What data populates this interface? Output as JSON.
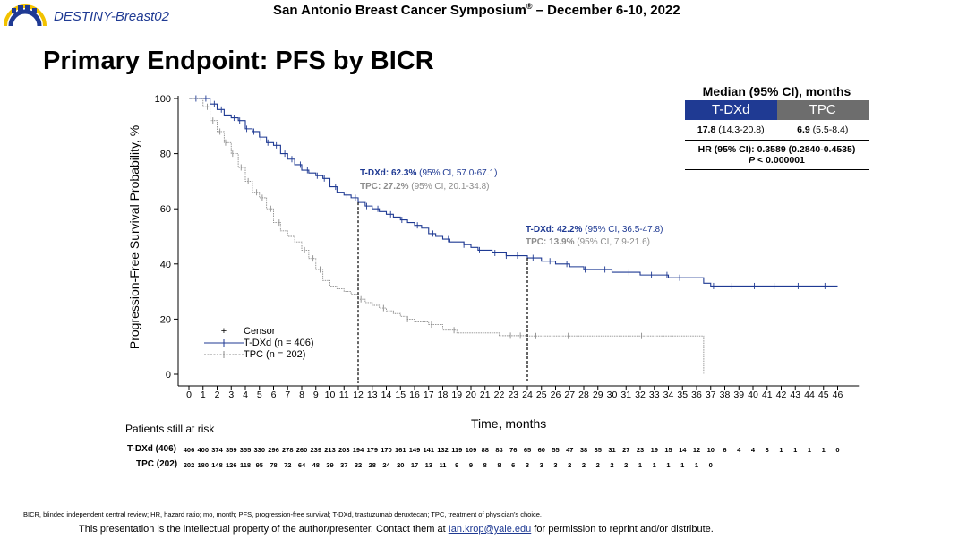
{
  "header": {
    "brand": "DESTINY-Breast02",
    "conference": "San Antonio Breast Cancer Symposium",
    "conference_mark": "®",
    "conference_dates": " – December 6-10, 2022"
  },
  "slide_title": "Primary Endpoint: PFS by BICR",
  "median_table": {
    "title": "Median (95% CI), months",
    "arm1": "T-DXd",
    "arm2": "TPC",
    "arm1_median": "17.8",
    "arm1_ci": "(14.3-20.8)",
    "arm2_median": "6.9",
    "arm2_ci": "(5.5-8.4)",
    "hr": "HR (95% CI): 0.3589 (0.2840-0.4535)",
    "p_prefix": "P",
    "p_value": "< 0.000001"
  },
  "annotations": {
    "m12": {
      "tdxd_label": "T-DXd: 62.3%",
      "tdxd_ci": "(95% CI, 57.0-67.1)",
      "tpc_label": "TPC: 27.2%",
      "tpc_ci": "(95% CI, 20.1-34.8)"
    },
    "m24": {
      "tdxd_label": "T-DXd: 42.2%",
      "tdxd_ci": "(95% CI, 36.5-47.8)",
      "tpc_label": "TPC: 13.9%",
      "tpc_ci": "(95% CI, 7.9-21.6)"
    }
  },
  "legend": {
    "censor": "Censor",
    "tdxd": "T-DXd (n = 406)",
    "tpc": "TPC (n = 202)"
  },
  "risk_table": {
    "title": "Patients still at risk",
    "tdxd_label": "T-DXd (406)",
    "tpc_label": "TPC (202)",
    "tdxd": [
      406,
      400,
      374,
      359,
      355,
      330,
      296,
      278,
      260,
      239,
      213,
      203,
      194,
      179,
      170,
      161,
      149,
      141,
      132,
      119,
      109,
      88,
      83,
      76,
      65,
      60,
      55,
      47,
      38,
      35,
      31,
      27,
      23,
      19,
      15,
      14,
      12,
      10,
      6,
      4,
      4,
      3,
      1,
      1,
      1,
      1,
      0
    ],
    "tpc": [
      202,
      180,
      148,
      126,
      118,
      95,
      78,
      72,
      64,
      48,
      39,
      37,
      32,
      28,
      24,
      20,
      17,
      13,
      11,
      9,
      9,
      8,
      8,
      6,
      3,
      3,
      3,
      2,
      2,
      2,
      2,
      2,
      1,
      1,
      1,
      1,
      1,
      0
    ]
  },
  "footer": {
    "footnote": "BICR,  blinded independent central review; HR, hazard ratio; mo,  month;  PFS,   progression-free survival; T-DXd, trastuzumab deruxtecan; TPC,  treatment  of physician’s choice.",
    "disclaimer_pre": "This presentation is the intellectual property of the author/presenter. Contact them at ",
    "email": "Ian.krop@yale.edu",
    "disclaimer_post": "  for permission to reprint and/or distribute."
  },
  "colors": {
    "tdxd": "#1f3a93",
    "tpc": "#8c8c8c",
    "tpc_header": "#6d6d6d"
  },
  "chart_data": {
    "type": "line",
    "title": "",
    "xlabel": "Time, months",
    "ylabel": "Progression-Free  Survival  Probability, %",
    "xlim": [
      0,
      47
    ],
    "ylim": [
      0,
      100
    ],
    "xticks": [
      0,
      1,
      2,
      3,
      4,
      5,
      6,
      7,
      8,
      9,
      10,
      11,
      12,
      13,
      14,
      15,
      16,
      17,
      18,
      19,
      20,
      21,
      22,
      23,
      24,
      25,
      26,
      27,
      28,
      29,
      30,
      31,
      32,
      33,
      34,
      35,
      36,
      37,
      38,
      39,
      40,
      41,
      42,
      43,
      44,
      45,
      46
    ],
    "yticks": [
      0,
      20,
      40,
      60,
      80,
      100
    ],
    "grid": false,
    "reference_months": [
      12,
      24
    ],
    "series": [
      {
        "name": "T-DXd (n = 406)",
        "style": "solid",
        "x": [
          0,
          1,
          1.5,
          2,
          2.5,
          3,
          3.5,
          4,
          4.5,
          5,
          5.5,
          6,
          6.5,
          7,
          7.5,
          8,
          8.5,
          9,
          9.5,
          10,
          10.5,
          11,
          11.5,
          12,
          12.5,
          13,
          13.5,
          14,
          14.5,
          15,
          15.5,
          16,
          16.5,
          17,
          17.5,
          18,
          18.5,
          19,
          19.5,
          20,
          20.5,
          21,
          21.5,
          22,
          22.5,
          23,
          23.5,
          24,
          25,
          26,
          27,
          28,
          29,
          30,
          31,
          32,
          33,
          34,
          35,
          36,
          36.5,
          37,
          38,
          40,
          42,
          44,
          46
        ],
        "y": [
          100,
          100,
          98,
          96,
          94,
          93,
          92,
          89,
          88,
          86,
          84,
          83,
          80,
          78,
          76,
          74,
          73,
          72,
          71,
          68,
          66,
          65,
          64,
          62.3,
          61,
          60,
          59,
          58,
          57,
          56,
          55,
          54,
          53,
          51,
          50,
          49,
          48,
          48,
          47,
          46,
          45,
          45,
          44,
          44,
          43,
          43,
          43,
          42.2,
          41,
          40,
          39,
          38,
          38,
          37,
          37,
          36,
          36,
          35,
          35,
          35,
          33,
          32,
          32,
          32,
          32,
          32,
          32
        ],
        "censor_x": [
          0.5,
          1.2,
          1.8,
          2.3,
          2.7,
          3.2,
          3.6,
          4.1,
          4.6,
          5.1,
          5.6,
          6.2,
          6.8,
          7.3,
          7.9,
          8.4,
          9.1,
          9.6,
          10.4,
          11.2,
          11.8,
          12.6,
          13.4,
          14.3,
          15.1,
          16.2,
          17.3,
          18.4,
          19.5,
          20.6,
          21.7,
          22.5,
          23.3,
          24.4,
          25.6,
          26.8,
          28.1,
          29.5,
          31.2,
          32.8,
          33.9,
          34.8,
          37.2,
          38.5,
          40.1,
          41.5,
          43.2,
          45.1
        ]
      },
      {
        "name": "TPC (n = 202)",
        "style": "dotted",
        "x": [
          0,
          1,
          1.5,
          2,
          2.5,
          3,
          3.5,
          4,
          4.5,
          5,
          5.5,
          6,
          6.5,
          7,
          7.5,
          8,
          8.5,
          9,
          9.5,
          10,
          10.5,
          11,
          11.5,
          12,
          12.5,
          13,
          13.5,
          14,
          14.5,
          15,
          15.5,
          16,
          17,
          18,
          19,
          21,
          22,
          23,
          24,
          26,
          28,
          30,
          32,
          34,
          36,
          36.5
        ],
        "y": [
          100,
          97,
          92,
          88,
          84,
          80,
          75,
          70,
          66,
          64,
          60,
          55,
          52,
          50,
          48,
          45,
          42,
          38,
          34,
          32,
          31,
          30,
          29,
          27.2,
          26,
          25,
          24,
          23,
          22,
          21,
          20,
          19,
          18,
          16,
          15,
          15,
          14,
          14,
          13.9,
          13.9,
          13.9,
          13.9,
          13.9,
          13.9,
          13.9,
          0
        ],
        "censor_x": [
          1.3,
          1.7,
          2.2,
          2.6,
          3.1,
          3.7,
          4.2,
          4.8,
          5.2,
          5.8,
          6.4,
          8.2,
          8.8,
          9.3,
          12.2,
          13.8,
          15.5,
          17.2,
          18.8,
          22.8,
          23.5,
          24.6,
          26.9,
          32.1
        ]
      }
    ]
  }
}
